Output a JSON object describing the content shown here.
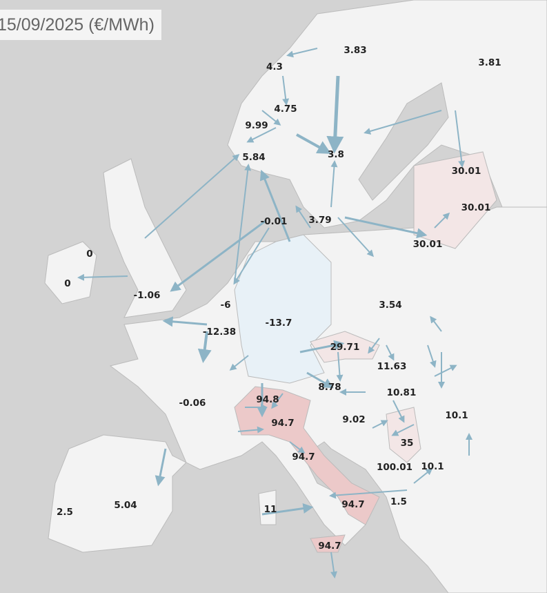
{
  "title": "15/09/2025 (€/MWh)",
  "colors": {
    "sea": "#d3d3d3",
    "land": "#f3f3f3",
    "germany_zone": "#e8f1f7",
    "high_price_zone": "#ecc9c9",
    "mid_price_zone": "#f3e6e6",
    "flow_arrow": "#8db4c6"
  },
  "price_labels": [
    {
      "zone": "north-sweden",
      "value": "3.83"
    },
    {
      "zone": "finland",
      "value": "3.81"
    },
    {
      "zone": "norway-north",
      "value": "4.3"
    },
    {
      "zone": "norway-central",
      "value": "4.75"
    },
    {
      "zone": "norway-west",
      "value": "9.99"
    },
    {
      "zone": "norway-south",
      "value": "5.84"
    },
    {
      "zone": "sweden-central",
      "value": "3.8"
    },
    {
      "zone": "estonia",
      "value": "30.01"
    },
    {
      "zone": "latvia",
      "value": "30.01"
    },
    {
      "zone": "lithuania",
      "value": "30.01"
    },
    {
      "zone": "denmark",
      "value": "-0.01"
    },
    {
      "zone": "sweden-south",
      "value": "3.79"
    },
    {
      "zone": "northern-ireland",
      "value": "0"
    },
    {
      "zone": "ireland",
      "value": "0"
    },
    {
      "zone": "great-britain",
      "value": "-1.06"
    },
    {
      "zone": "netherlands",
      "value": "-6"
    },
    {
      "zone": "belgium",
      "value": "-12.38"
    },
    {
      "zone": "germany",
      "value": "-13.7"
    },
    {
      "zone": "poland",
      "value": "3.54"
    },
    {
      "zone": "czechia",
      "value": "29.71"
    },
    {
      "zone": "slovakia",
      "value": "11.63"
    },
    {
      "zone": "austria",
      "value": "8.78"
    },
    {
      "zone": "hungary",
      "value": "10.81"
    },
    {
      "zone": "switzerland",
      "value": "94.8"
    },
    {
      "zone": "france",
      "value": "-0.06"
    },
    {
      "zone": "italy-north",
      "value": "94.7"
    },
    {
      "zone": "croatia",
      "value": "9.02"
    },
    {
      "zone": "romania",
      "value": "10.1"
    },
    {
      "zone": "serbia",
      "value": "35"
    },
    {
      "zone": "italy-centre",
      "value": "94.7"
    },
    {
      "zone": "montenegro",
      "value": "100.01"
    },
    {
      "zone": "bulgaria",
      "value": "10.1"
    },
    {
      "zone": "spain",
      "value": "5.04"
    },
    {
      "zone": "portugal",
      "value": "2.5"
    },
    {
      "zone": "sardinia",
      "value": "11"
    },
    {
      "zone": "italy-south",
      "value": "94.7"
    },
    {
      "zone": "greece",
      "value": "1.5"
    },
    {
      "zone": "sicily",
      "value": "94.7"
    }
  ]
}
